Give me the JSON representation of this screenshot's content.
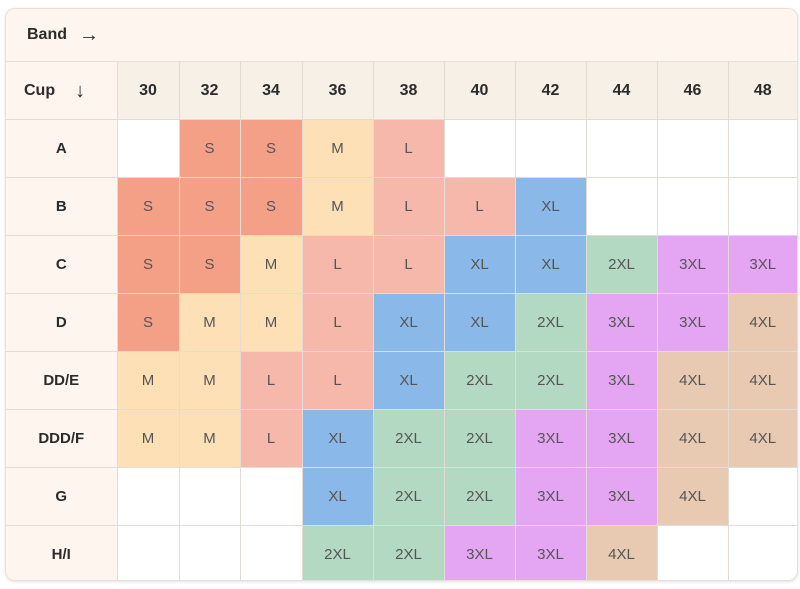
{
  "band_label": "Band",
  "band_arrow": "→",
  "cup_label": "Cup",
  "cup_arrow": "↓",
  "bands": [
    "30",
    "32",
    "34",
    "36",
    "38",
    "40",
    "42",
    "44",
    "46",
    "48"
  ],
  "size_colors": {
    "S": "#f4a087",
    "M": "#fde0b6",
    "L": "#f5b8ab",
    "XL": "#8ab8e8",
    "2XL": "#b3d9c2",
    "3XL": "#e4a6f3",
    "4XL": "#e8cab2"
  },
  "rows": [
    {
      "cup": "A",
      "sizes": [
        "",
        "S",
        "S",
        "M",
        "L",
        "",
        "",
        "",
        "",
        ""
      ]
    },
    {
      "cup": "B",
      "sizes": [
        "S",
        "S",
        "S",
        "M",
        "L",
        "L",
        "XL",
        "",
        "",
        ""
      ]
    },
    {
      "cup": "C",
      "sizes": [
        "S",
        "S",
        "M",
        "L",
        "L",
        "XL",
        "XL",
        "2XL",
        "3XL",
        "3XL"
      ]
    },
    {
      "cup": "D",
      "sizes": [
        "S",
        "M",
        "M",
        "L",
        "XL",
        "XL",
        "2XL",
        "3XL",
        "3XL",
        "4XL"
      ]
    },
    {
      "cup": "DD/E",
      "sizes": [
        "M",
        "M",
        "L",
        "L",
        "XL",
        "2XL",
        "2XL",
        "3XL",
        "4XL",
        "4XL"
      ]
    },
    {
      "cup": "DDD/F",
      "sizes": [
        "M",
        "M",
        "L",
        "XL",
        "2XL",
        "2XL",
        "3XL",
        "3XL",
        "4XL",
        "4XL"
      ]
    },
    {
      "cup": "G",
      "sizes": [
        "",
        "",
        "",
        "XL",
        "2XL",
        "2XL",
        "3XL",
        "3XL",
        "4XL",
        ""
      ]
    },
    {
      "cup": "H/I",
      "sizes": [
        "",
        "",
        "",
        "2XL",
        "2XL",
        "3XL",
        "3XL",
        "4XL",
        "",
        ""
      ]
    }
  ]
}
